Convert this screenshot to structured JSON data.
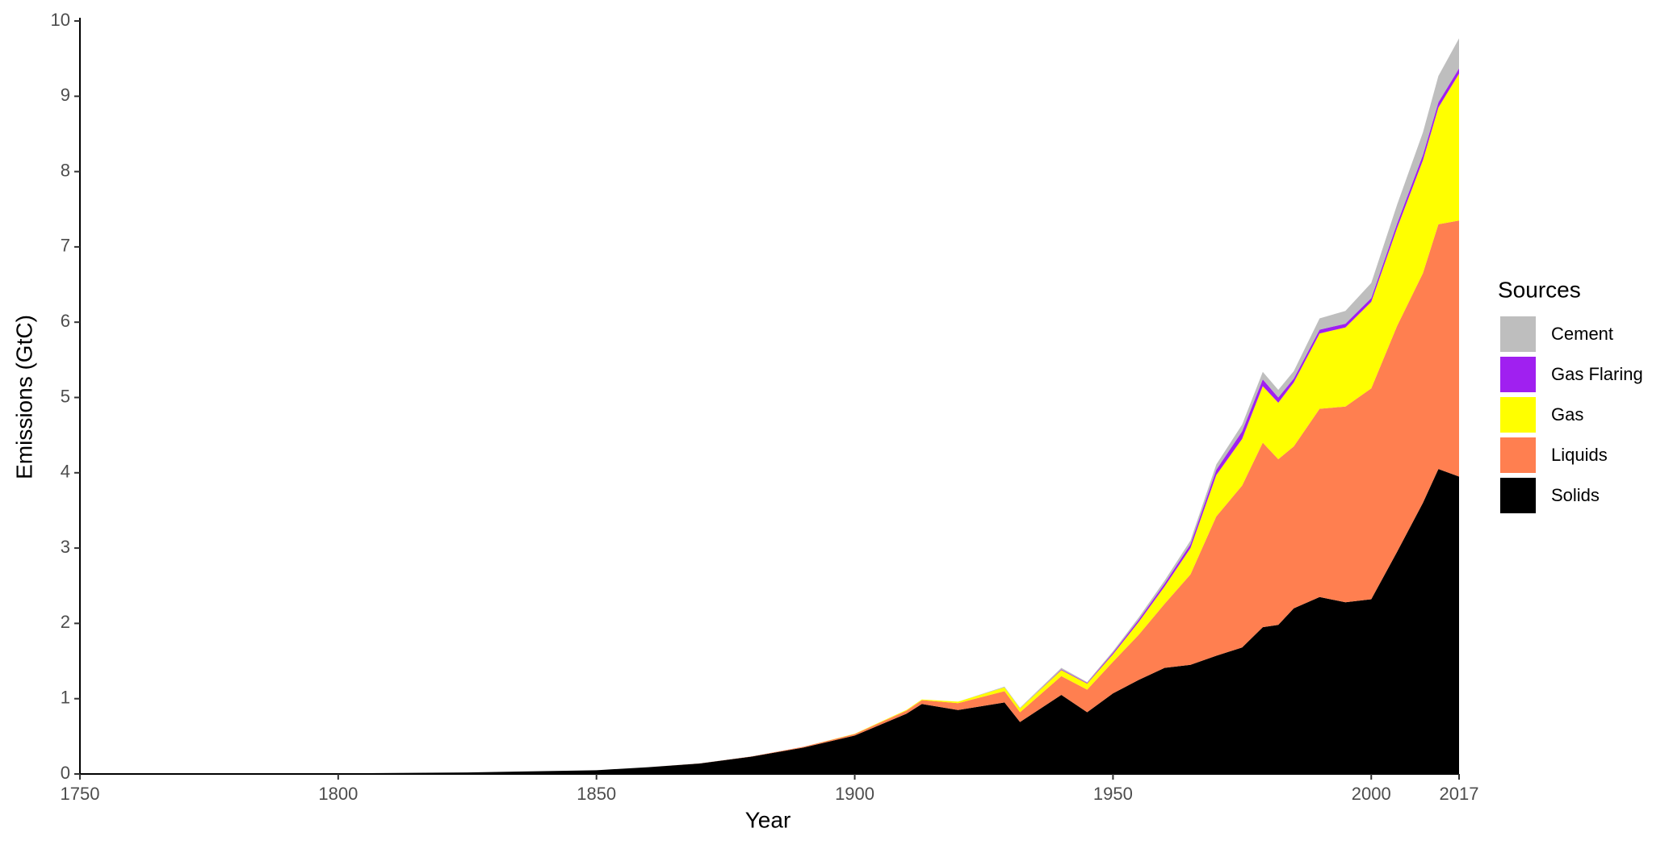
{
  "chart_data": {
    "type": "stacked_area",
    "x_label": "Year",
    "y_label": "Emissions (GtC)",
    "legend_title": "Sources",
    "x": [
      1750,
      1800,
      1825,
      1850,
      1860,
      1870,
      1880,
      1890,
      1900,
      1910,
      1913,
      1920,
      1929,
      1932,
      1940,
      1945,
      1950,
      1955,
      1960,
      1965,
      1970,
      1975,
      1979,
      1982,
      1985,
      1990,
      1995,
      2000,
      2005,
      2010,
      2013,
      2017
    ],
    "series": [
      {
        "name": "Solids",
        "color": "#000000",
        "values": [
          0.003,
          0.008,
          0.02,
          0.05,
          0.09,
          0.14,
          0.23,
          0.35,
          0.51,
          0.8,
          0.93,
          0.85,
          0.95,
          0.69,
          1.05,
          0.82,
          1.07,
          1.25,
          1.41,
          1.45,
          1.57,
          1.68,
          1.95,
          1.98,
          2.2,
          2.35,
          2.28,
          2.32,
          2.95,
          3.6,
          4.05,
          3.95
        ]
      },
      {
        "name": "Liquids",
        "color": "#ff7f50",
        "values": [
          0,
          0,
          0,
          0,
          0,
          0.001,
          0.003,
          0.01,
          0.02,
          0.04,
          0.05,
          0.09,
          0.15,
          0.13,
          0.25,
          0.3,
          0.42,
          0.6,
          0.85,
          1.2,
          1.85,
          2.15,
          2.45,
          2.2,
          2.15,
          2.5,
          2.6,
          2.8,
          3.0,
          3.05,
          3.25,
          3.4
        ]
      },
      {
        "name": "Gas",
        "color": "#ffff00",
        "values": [
          0,
          0,
          0,
          0,
          0,
          0,
          0,
          0,
          0.005,
          0.01,
          0.01,
          0.02,
          0.05,
          0.05,
          0.08,
          0.08,
          0.1,
          0.17,
          0.23,
          0.35,
          0.55,
          0.62,
          0.75,
          0.75,
          0.85,
          1.0,
          1.05,
          1.15,
          1.3,
          1.5,
          1.55,
          1.95
        ]
      },
      {
        "name": "Gas Flaring",
        "color": "#a020f0",
        "values": [
          0,
          0,
          0,
          0,
          0,
          0,
          0,
          0,
          0,
          0,
          0,
          0,
          0,
          0,
          0.01,
          0.01,
          0.02,
          0.03,
          0.04,
          0.05,
          0.07,
          0.1,
          0.09,
          0.07,
          0.05,
          0.05,
          0.05,
          0.05,
          0.06,
          0.07,
          0.07,
          0.07
        ]
      },
      {
        "name": "Cement",
        "color": "#bebebe",
        "values": [
          0,
          0,
          0,
          0,
          0,
          0,
          0,
          0,
          0,
          0,
          0,
          0,
          0.01,
          0.01,
          0.02,
          0.01,
          0.02,
          0.03,
          0.04,
          0.05,
          0.07,
          0.09,
          0.1,
          0.1,
          0.1,
          0.15,
          0.17,
          0.2,
          0.25,
          0.3,
          0.35,
          0.4
        ]
      }
    ],
    "xlim": [
      1750,
      2017
    ],
    "xticks": [
      1750,
      1800,
      1850,
      1900,
      1950,
      2000,
      2017
    ],
    "ylim": [
      0,
      10
    ],
    "yticks": [
      0,
      1,
      2,
      3,
      4,
      5,
      6,
      7,
      8,
      9,
      10
    ],
    "grid": false,
    "legend": "right"
  }
}
